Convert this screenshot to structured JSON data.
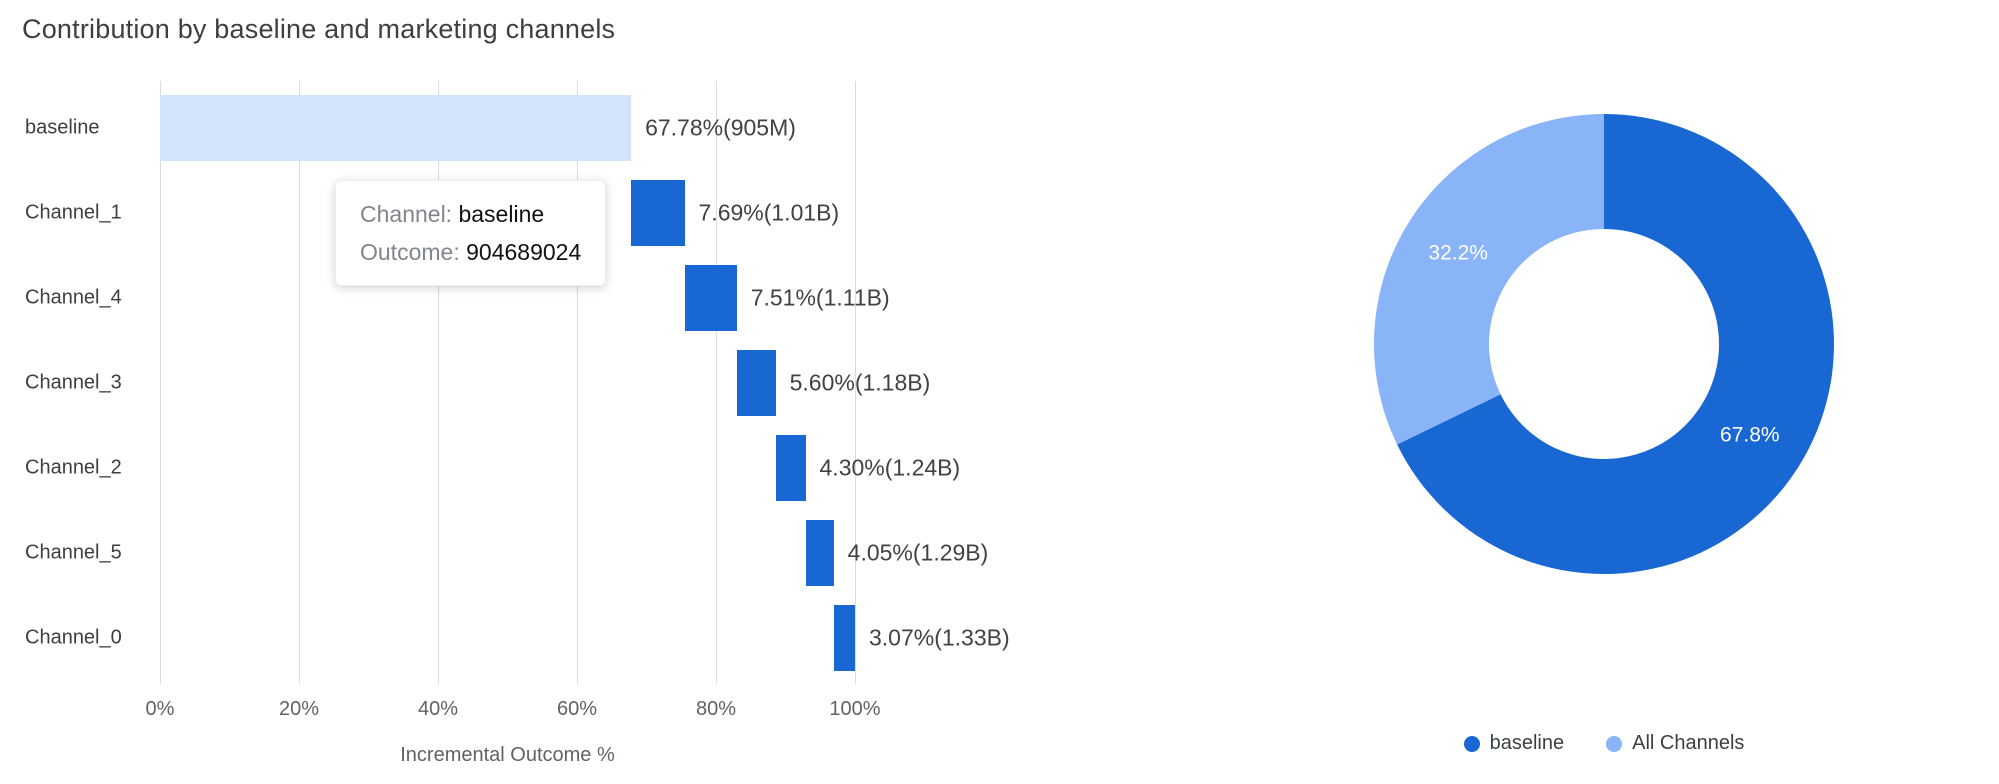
{
  "chart_data": [
    {
      "type": "bar",
      "subtype": "horizontal-waterfall",
      "title": "Contribution by baseline and marketing channels",
      "xlabel": "Incremental Outcome %",
      "xlim": [
        0,
        100
      ],
      "xticks": [
        0,
        20,
        40,
        60,
        80,
        100
      ],
      "xtick_labels": [
        "0%",
        "20%",
        "40%",
        "60%",
        "80%",
        "100%"
      ],
      "grid": true,
      "categories": [
        "baseline",
        "Channel_1",
        "Channel_4",
        "Channel_3",
        "Channel_2",
        "Channel_5",
        "Channel_0"
      ],
      "series": [
        {
          "name": "Incremental Outcome %",
          "segments": [
            {
              "category": "baseline",
              "start": 0,
              "end": 67.78,
              "value_pct": 67.78,
              "label": "67.78%(905M)",
              "color": "#d2e3fc"
            },
            {
              "category": "Channel_1",
              "start": 67.78,
              "end": 75.47,
              "value_pct": 7.69,
              "label": "7.69%(1.01B)",
              "color": "#1967d2"
            },
            {
              "category": "Channel_4",
              "start": 75.47,
              "end": 82.98,
              "value_pct": 7.51,
              "label": "7.51%(1.11B)",
              "color": "#1967d2"
            },
            {
              "category": "Channel_3",
              "start": 82.98,
              "end": 88.58,
              "value_pct": 5.6,
              "label": "5.60%(1.18B)",
              "color": "#1967d2"
            },
            {
              "category": "Channel_2",
              "start": 88.58,
              "end": 92.88,
              "value_pct": 4.3,
              "label": "4.30%(1.24B)",
              "color": "#1967d2"
            },
            {
              "category": "Channel_5",
              "start": 92.88,
              "end": 96.93,
              "value_pct": 4.05,
              "label": "4.05%(1.29B)",
              "color": "#1967d2"
            },
            {
              "category": "Channel_0",
              "start": 96.93,
              "end": 100.0,
              "value_pct": 3.07,
              "label": "3.07%(1.33B)",
              "color": "#1967d2"
            }
          ]
        }
      ],
      "tooltip": {
        "channel_label": "Channel:",
        "channel_value": "baseline",
        "outcome_label": "Outcome:",
        "outcome_value": "904689024"
      }
    },
    {
      "type": "pie",
      "subtype": "donut",
      "start_angle_deg": 0,
      "direction": "clockwise",
      "hole_ratio": 0.5,
      "slices": [
        {
          "label": "baseline",
          "value": 67.8,
          "display": "67.8%",
          "color": "#1967d2"
        },
        {
          "label": "All Channels",
          "value": 32.2,
          "display": "32.2%",
          "color": "#8ab4f8"
        }
      ],
      "legend_position": "bottom",
      "label_text_color": "#ffffff"
    }
  ]
}
